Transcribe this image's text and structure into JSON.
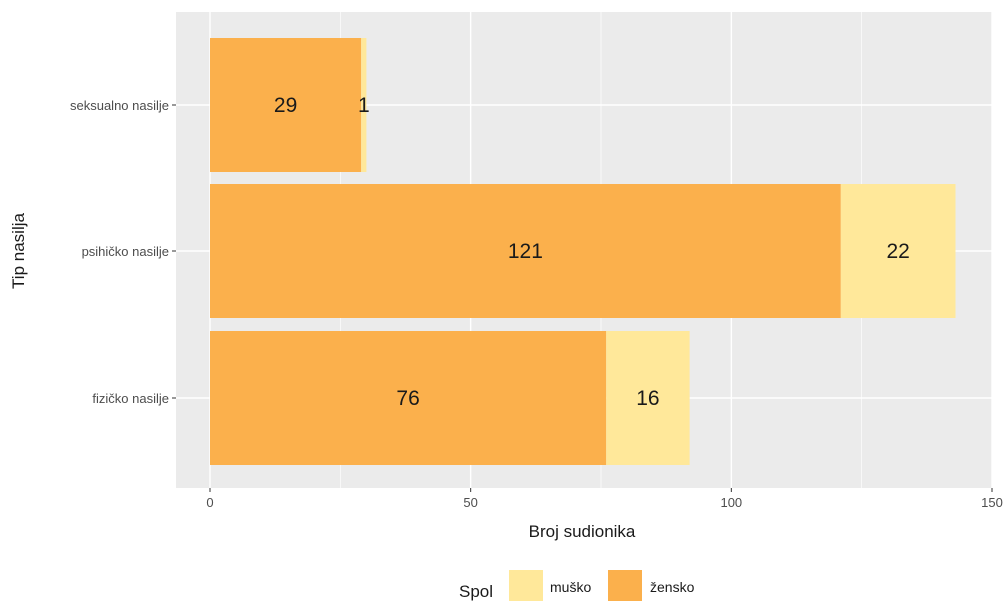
{
  "chart_data": {
    "type": "bar",
    "orientation": "horizontal",
    "stacked": true,
    "categories": [
      "seksualno nasilje",
      "psihičko nasilje",
      "fizičko nasilje"
    ],
    "series": [
      {
        "name": "žensko",
        "values": [
          29,
          121,
          76
        ],
        "color": "#fbb04c"
      },
      {
        "name": "muško",
        "values": [
          1,
          22,
          16
        ],
        "color": "#ffe89a"
      }
    ],
    "xlabel": "Broj sudionika",
    "ylabel": "Tip nasilja",
    "xlim": [
      0,
      150
    ],
    "xticks": [
      0,
      50,
      100,
      150
    ],
    "grid": true,
    "panel_background": "#ebebeb",
    "legend": {
      "title": "Spol",
      "position": "bottom",
      "items": [
        {
          "label": "muško",
          "color": "#ffe89a"
        },
        {
          "label": "žensko",
          "color": "#fbb04c"
        }
      ]
    }
  }
}
